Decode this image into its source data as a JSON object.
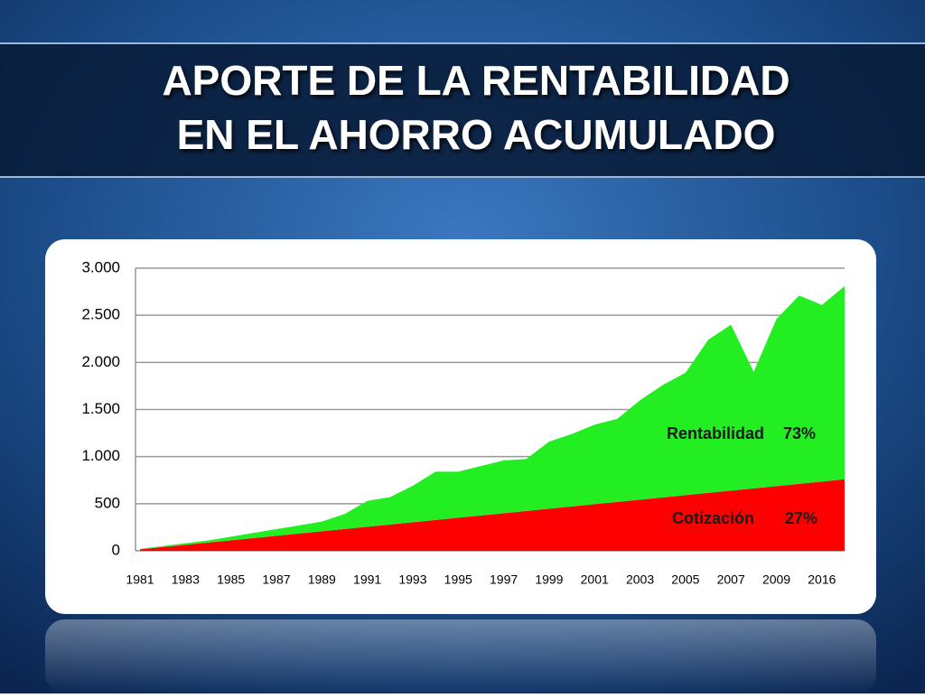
{
  "chart_data": {
    "type": "stacked_area",
    "title": [
      "APORTE DE LA RENTABILIDAD",
      "EN EL AHORRO ACUMULADO"
    ],
    "categories": [
      "1981",
      null,
      "1983",
      null,
      "1985",
      null,
      "1987",
      null,
      "1989",
      null,
      "1991",
      null,
      "1993",
      null,
      "1995",
      null,
      "1997",
      null,
      "1999",
      null,
      "2001",
      null,
      "2003",
      null,
      "2005",
      null,
      "2007",
      null,
      "2009",
      null,
      "2016",
      null
    ],
    "series": [
      {
        "name": "Cotización",
        "color": "#ff0000",
        "values": [
          15,
          39,
          63,
          87,
          111,
          135,
          159,
          183,
          207,
          231,
          255,
          279,
          303,
          327,
          351,
          375,
          399,
          423,
          447,
          471,
          495,
          519,
          543,
          567,
          591,
          615,
          639,
          663,
          687,
          711,
          735,
          759
        ]
      },
      {
        "name": "Rentabilidad",
        "color": "#22ee22",
        "values": [
          5,
          11,
          17,
          23,
          39,
          55,
          71,
          87,
          103,
          159,
          275,
          291,
          387,
          513,
          489,
          525,
          561,
          552,
          713,
          769,
          845,
          881,
          1057,
          1193,
          1299,
          1625,
          1761,
          1237,
          1773,
          1999,
          1875,
          2051
        ]
      }
    ],
    "annotations": [
      "27%",
      "73%"
    ],
    "ylim": [
      0,
      3000
    ],
    "yticks": [
      0,
      500,
      {
        "value": 1000,
        "label": "1.000"
      },
      {
        "value": 1500,
        "label": "1.500"
      },
      {
        "value": 2000,
        "label": "2.000"
      },
      {
        "value": 2500,
        "label": "2.500"
      },
      {
        "value": 3000,
        "label": "3.000"
      }
    ],
    "grid": true
  }
}
